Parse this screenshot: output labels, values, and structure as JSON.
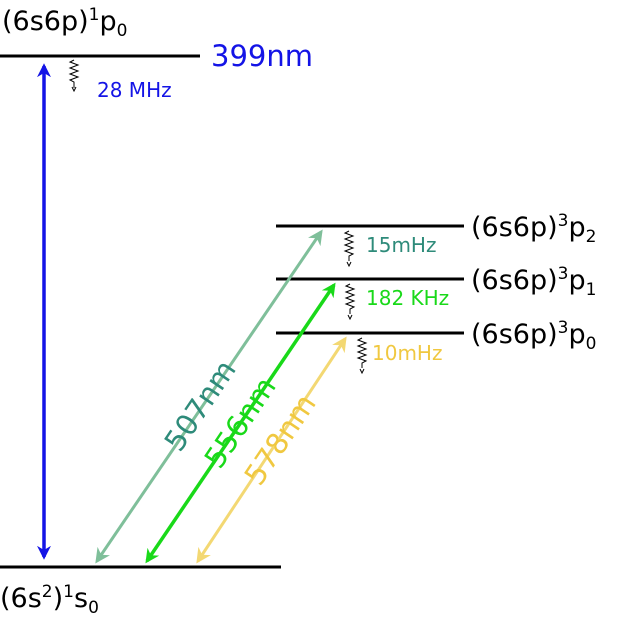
{
  "levels": {
    "p1_upper": {
      "base": "(6s6p)",
      "sup": "1",
      "main": "p",
      "sub": "0"
    },
    "p3_2": {
      "base": "(6s6p)",
      "sup": "3",
      "main": "p",
      "sub": "2"
    },
    "p3_1": {
      "base": "(6s6p)",
      "sup": "3",
      "main": "p",
      "sub": "1"
    },
    "p3_0": {
      "base": "(6s6p)",
      "sup": "3",
      "main": "p",
      "sub": "0"
    },
    "ground": {
      "base": "(6s",
      "sup_inner": "2",
      "close": ")",
      "sup": "1",
      "main": "s",
      "sub": "0"
    }
  },
  "transitions": {
    "t399": {
      "wavelength": "399nm",
      "linewidth": "28 MHz",
      "color": "#1414e6"
    },
    "t507": {
      "wavelength": "507nm",
      "linewidth": "15mHz",
      "color": "#2e8b7a",
      "arrow_color": "#7fbf9a"
    },
    "t556": {
      "wavelength": "556nm",
      "linewidth": "182 KHz",
      "color": "#19d919"
    },
    "t578": {
      "wavelength": "578nm",
      "linewidth": "10mHz",
      "color": "#f0c840",
      "arrow_color": "#f3d873"
    }
  }
}
